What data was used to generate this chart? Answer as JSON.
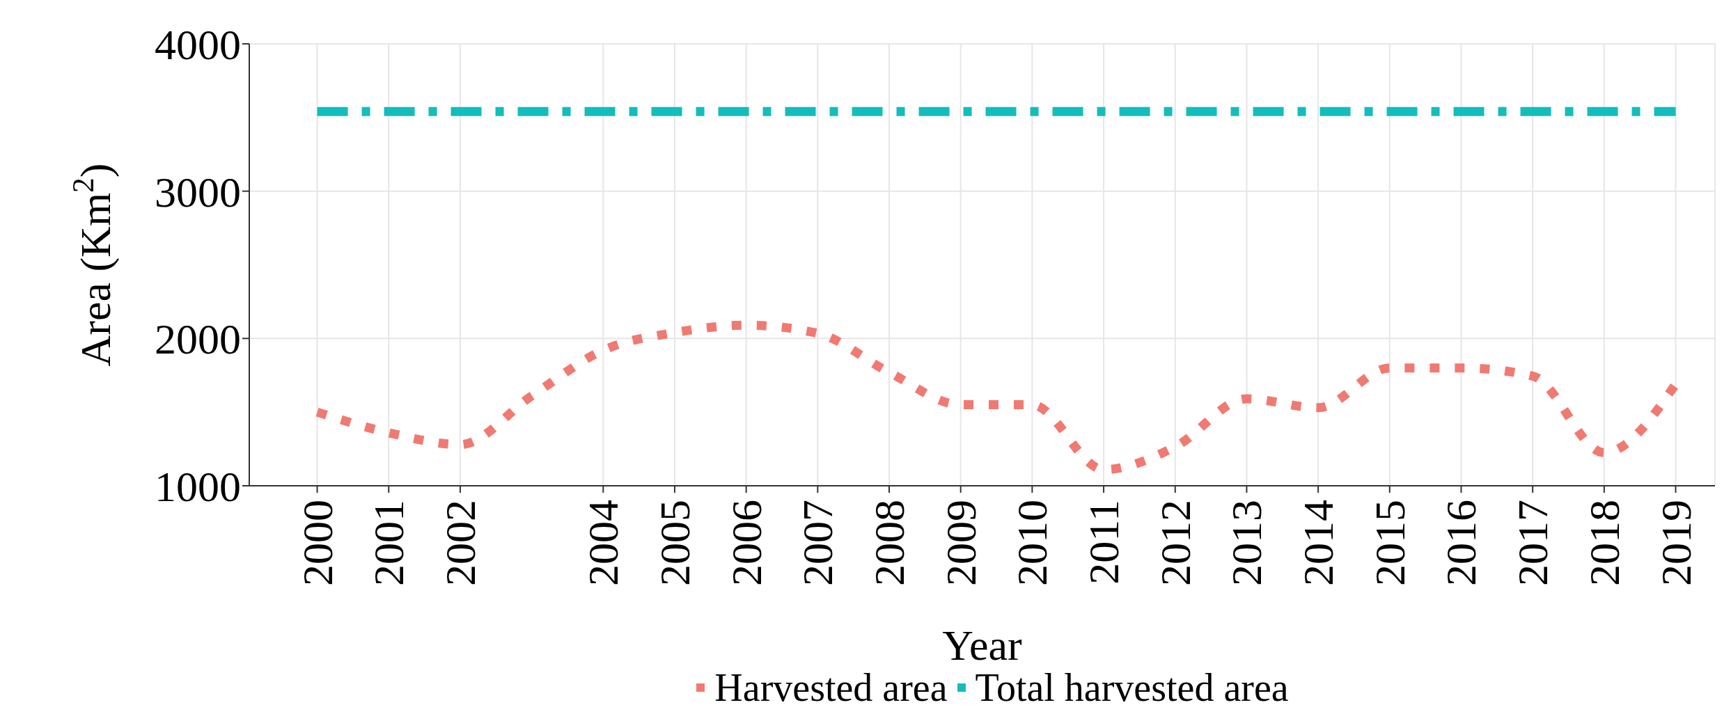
{
  "chart_data": {
    "type": "line",
    "xlabel": "Year",
    "ylabel": "Area (Km$^{2}$)",
    "categories": [
      "2000",
      "2001",
      "2002",
      null,
      "2004",
      "2005",
      "2006",
      "2007",
      "2008",
      "2009",
      "2010",
      "2011",
      "2012",
      "2013",
      "2014",
      "2015",
      "2016",
      "2017",
      "2018",
      "2019"
    ],
    "series": [
      {
        "name": "Harvested area",
        "color": "#f07a72",
        "line_style": "dotted",
        "values": [
          1500,
          1360,
          1280,
          1610,
          1920,
          2040,
          2090,
          2035,
          1770,
          1550,
          1550,
          1110,
          1265,
          1590,
          1530,
          1800,
          1800,
          1745,
          1225,
          1690
        ]
      },
      {
        "name": "Total harvested area",
        "color": "#13bdbd",
        "line_style": "dashed",
        "values": [
          3540,
          3540,
          3540,
          3540,
          3540,
          3540,
          3540,
          3540,
          3540,
          3540,
          3540,
          3540,
          3540,
          3540,
          3540,
          3540,
          3540,
          3540,
          3540,
          3540
        ]
      }
    ],
    "ylim": [
      1000,
      4000
    ],
    "yticks": [
      1000,
      2000,
      3000,
      4000
    ],
    "grid": true,
    "legend": "bottom",
    "marker": "none"
  }
}
